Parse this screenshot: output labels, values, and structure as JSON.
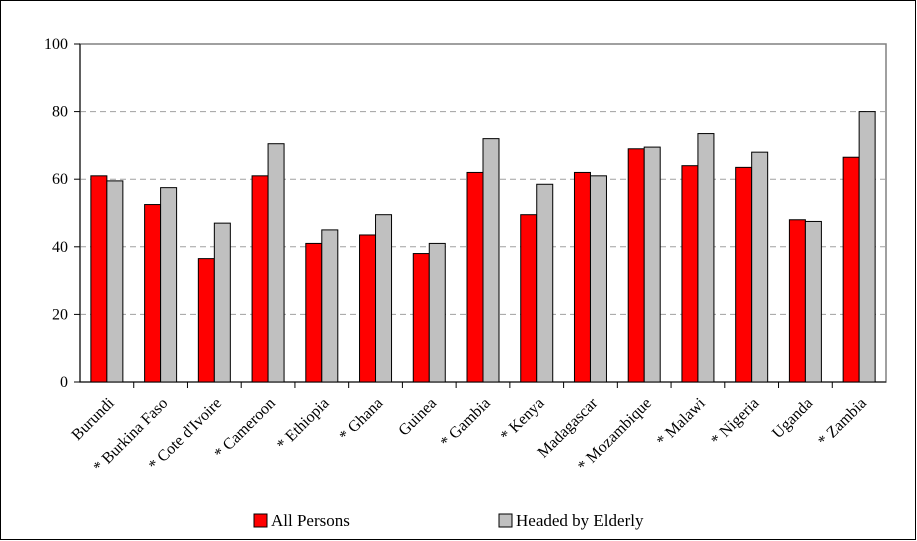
{
  "chart_data": {
    "type": "bar",
    "title": "",
    "xlabel": "",
    "ylabel": "",
    "ylim": [
      0,
      100
    ],
    "yticks": [
      0,
      20,
      40,
      60,
      80,
      100
    ],
    "grid": true,
    "legend_position": "bottom",
    "categories": [
      "Burundi",
      "* Burkina Faso",
      "* Cote d'Ivoire",
      "* Cameroon",
      "* Ethiopia",
      "* Ghana",
      "Guinea",
      "* Gambia",
      "* Kenya",
      "Madagascar",
      "* Mozambique",
      "* Malawi",
      "* Nigeria",
      "Uganda",
      "* Zambia"
    ],
    "series": [
      {
        "name": "All Persons",
        "color": "#ff0000",
        "values": [
          61,
          52.5,
          36.5,
          61,
          41,
          43.5,
          38,
          62,
          49.5,
          62,
          69,
          64,
          63.5,
          48,
          66.5
        ]
      },
      {
        "name": "Headed by Elderly",
        "color": "#c0c0c0",
        "values": [
          59.5,
          57.5,
          47,
          70.5,
          45,
          49.5,
          41,
          72,
          58.5,
          61,
          69.5,
          73.5,
          68,
          47.5,
          80
        ]
      }
    ]
  }
}
